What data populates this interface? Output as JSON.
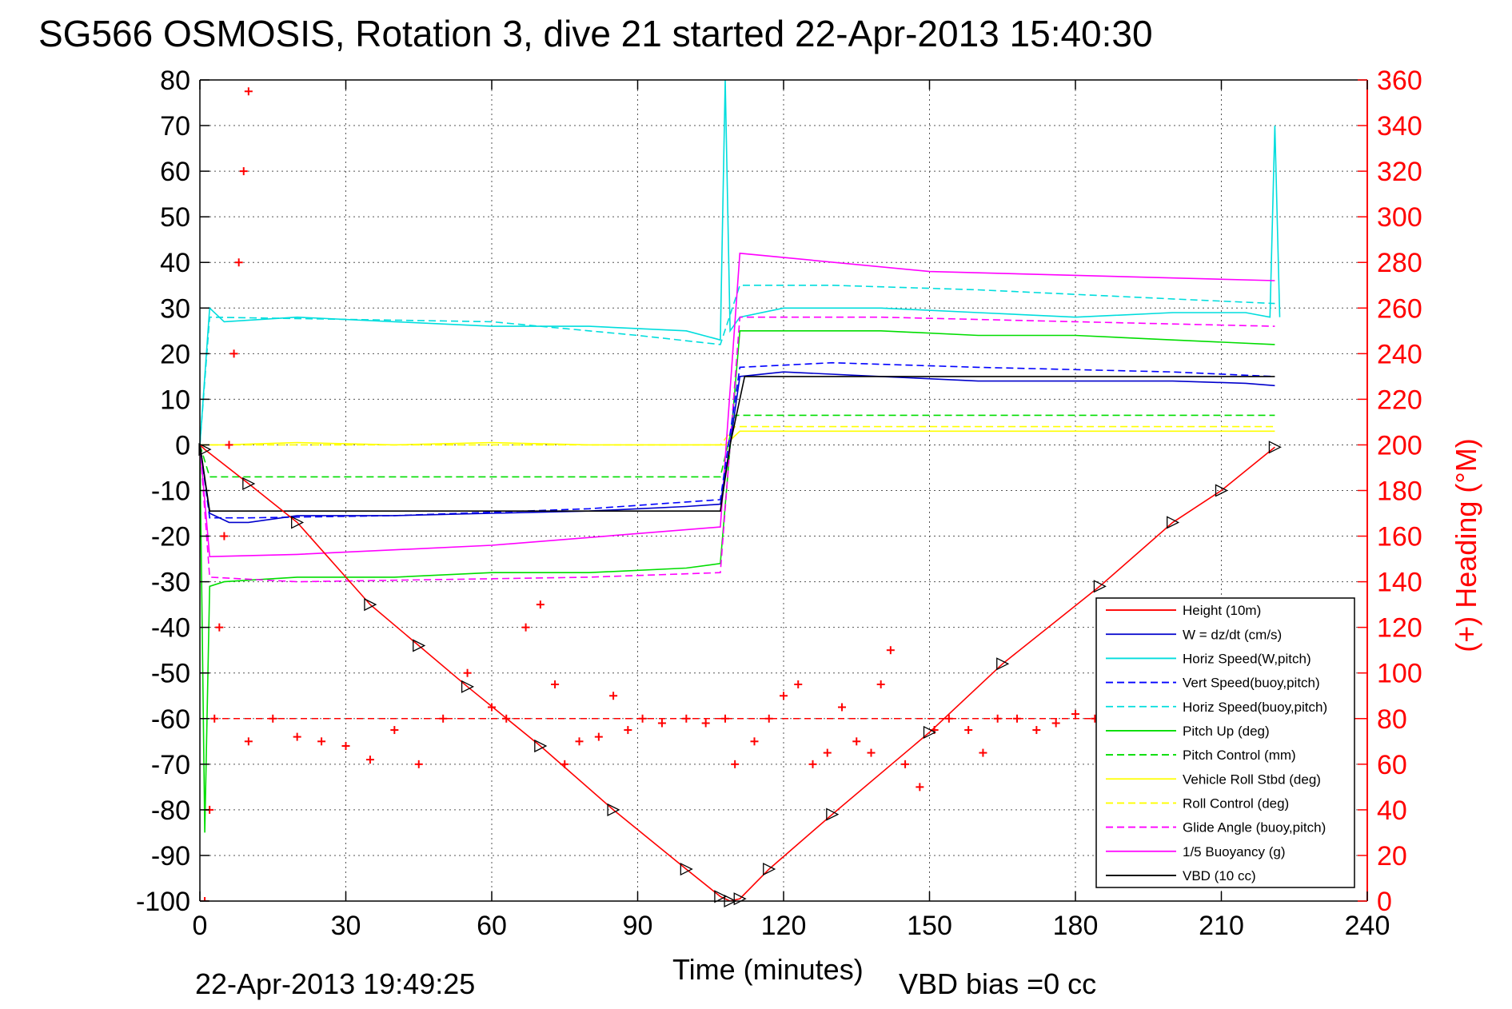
{
  "chart_data": {
    "type": "line",
    "title": "SG566 OSMOSIS, Rotation 3, dive 21 started 22-Apr-2013 15:40:30",
    "xlabel": "Time (minutes)",
    "ylabel_right": "(+) Heading (°M)",
    "footer_left": "22-Apr-2013 19:49:25",
    "footer_right": "VBD bias =0 cc",
    "xlim": [
      0,
      240
    ],
    "ylim": [
      -100,
      80
    ],
    "ylim_right": [
      0,
      360
    ],
    "xticks": [
      "0",
      "30",
      "60",
      "90",
      "120",
      "150",
      "180",
      "210",
      "240"
    ],
    "yticks": [
      "80",
      "70",
      "60",
      "50",
      "40",
      "30",
      "20",
      "10",
      "0",
      "-10",
      "-20",
      "-30",
      "-40",
      "-50",
      "-60",
      "-70",
      "-80",
      "-90",
      "-100"
    ],
    "yticks_right": [
      "360",
      "340",
      "320",
      "300",
      "280",
      "260",
      "240",
      "220",
      "200",
      "180",
      "160",
      "140",
      "120",
      "100",
      "80",
      "60",
      "40",
      "20",
      "0"
    ],
    "grid": true,
    "legend_position": "lower-right",
    "series": [
      {
        "name": "Height (10m)",
        "color": "#ff0000",
        "style": "solid",
        "x": [
          0,
          1,
          10,
          20,
          35,
          45,
          55,
          70,
          85,
          100,
          107,
          109,
          111,
          117,
          130,
          150,
          165,
          185,
          200,
          210,
          221
        ],
        "y": [
          0,
          -1,
          -8.5,
          -17,
          -35,
          -44,
          -53,
          -66,
          -80,
          -93,
          -99,
          -100,
          -99.5,
          -93,
          -81,
          -63,
          -48,
          -31,
          -17,
          -10,
          -0.5
        ]
      },
      {
        "name": "W = dz/dt (cm/s)",
        "color": "#0000cc",
        "style": "solid",
        "x": [
          0,
          2,
          6,
          10,
          20,
          40,
          60,
          80,
          100,
          107,
          109,
          111,
          120,
          140,
          160,
          180,
          200,
          215,
          221
        ],
        "y": [
          0,
          -15,
          -17,
          -17,
          -15.5,
          -15.5,
          -15,
          -14.5,
          -13.5,
          -13,
          0,
          15,
          16,
          15,
          14,
          14,
          14,
          13.5,
          13
        ]
      },
      {
        "name": "Horiz Speed(W,pitch)",
        "color": "#00dddd",
        "style": "solid",
        "x": [
          0,
          2,
          5,
          20,
          40,
          60,
          80,
          100,
          107,
          108,
          109,
          111,
          120,
          140,
          160,
          180,
          200,
          215,
          220,
          221,
          222
        ],
        "y": [
          0,
          30,
          27,
          28,
          27,
          26,
          26,
          25,
          23,
          80,
          25,
          28,
          30,
          30,
          29,
          28,
          29,
          29,
          28,
          70,
          28
        ]
      },
      {
        "name": "Vert Speed(buoy,pitch)",
        "color": "#0000ff",
        "style": "dashed",
        "x": [
          0,
          2,
          10,
          40,
          80,
          107,
          111,
          130,
          160,
          200,
          221
        ],
        "y": [
          0,
          -16,
          -16,
          -15.5,
          -14,
          -12,
          17,
          18,
          17,
          16,
          15
        ]
      },
      {
        "name": "Horiz Speed(buoy,pitch)",
        "color": "#00dddd",
        "style": "dashed",
        "x": [
          0,
          2,
          60,
          90,
          107,
          111,
          130,
          160,
          200,
          221
        ],
        "y": [
          0,
          28,
          27,
          24,
          22,
          35,
          35,
          34,
          32,
          31
        ]
      },
      {
        "name": "Pitch Up (deg)",
        "color": "#00dd00",
        "style": "solid",
        "x": [
          0,
          1,
          2,
          5,
          20,
          40,
          60,
          80,
          100,
          107,
          111,
          120,
          140,
          160,
          180,
          200,
          221
        ],
        "y": [
          0,
          -85,
          -31,
          -30,
          -29,
          -29,
          -28,
          -28,
          -27,
          -26,
          25,
          25,
          25,
          24,
          24,
          23,
          22
        ]
      },
      {
        "name": "Pitch Control (mm)",
        "color": "#00dd00",
        "style": "dashed",
        "x": [
          0,
          2,
          107,
          110,
          221
        ],
        "y": [
          0,
          -7,
          -7,
          6.5,
          6.5
        ]
      },
      {
        "name": "Vehicle Roll Stbd (deg)",
        "color": "#ffff00",
        "style": "solid",
        "x": [
          0,
          5,
          20,
          40,
          60,
          80,
          100,
          108,
          111,
          120,
          140,
          160,
          180,
          200,
          221
        ],
        "y": [
          0,
          0,
          0.5,
          0,
          0.5,
          0,
          0,
          0,
          3,
          3,
          3,
          3,
          3,
          3,
          3
        ]
      },
      {
        "name": "Roll Control (deg)",
        "color": "#ffff00",
        "style": "dashed",
        "x": [
          0,
          2,
          107,
          110,
          221
        ],
        "y": [
          0,
          0,
          0,
          4,
          4
        ]
      },
      {
        "name": "Glide Angle (buoy,pitch)",
        "color": "#ff00ff",
        "style": "dashed",
        "x": [
          0,
          2,
          20,
          50,
          80,
          107,
          111,
          140,
          180,
          221
        ],
        "y": [
          0,
          -29,
          -30,
          -29.5,
          -29,
          -28,
          28,
          28,
          27,
          26
        ]
      },
      {
        "name": "1/5 Buoyancy (g)",
        "color": "#ff00ff",
        "style": "solid",
        "x": [
          0,
          2,
          20,
          60,
          107,
          111,
          150,
          221
        ],
        "y": [
          0,
          -24.5,
          -24,
          -22,
          -18,
          42,
          38,
          36
        ]
      },
      {
        "name": "VBD (10 cc)",
        "color": "#000000",
        "style": "solid",
        "x": [
          0,
          2,
          107,
          109,
          112,
          221
        ],
        "y": [
          0,
          -14.5,
          -14.5,
          0,
          15,
          15
        ]
      }
    ],
    "heading": {
      "color": "#ff0000",
      "marker": "+",
      "axis": "right",
      "points": [
        [
          1,
          0
        ],
        [
          2,
          40
        ],
        [
          3,
          80
        ],
        [
          4,
          120
        ],
        [
          5,
          160
        ],
        [
          6,
          200
        ],
        [
          7,
          240
        ],
        [
          8,
          280
        ],
        [
          9,
          320
        ],
        [
          10,
          355
        ],
        [
          10,
          70
        ],
        [
          15,
          80
        ],
        [
          20,
          72
        ],
        [
          25,
          70
        ],
        [
          30,
          68
        ],
        [
          35,
          62
        ],
        [
          40,
          75
        ],
        [
          45,
          60
        ],
        [
          50,
          80
        ],
        [
          55,
          100
        ],
        [
          60,
          85
        ],
        [
          63,
          80
        ],
        [
          67,
          120
        ],
        [
          70,
          130
        ],
        [
          73,
          95
        ],
        [
          75,
          60
        ],
        [
          78,
          70
        ],
        [
          82,
          72
        ],
        [
          85,
          90
        ],
        [
          88,
          75
        ],
        [
          91,
          80
        ],
        [
          95,
          78
        ],
        [
          100,
          80
        ],
        [
          104,
          78
        ],
        [
          108,
          80
        ],
        [
          110,
          60
        ],
        [
          114,
          70
        ],
        [
          117,
          80
        ],
        [
          120,
          90
        ],
        [
          123,
          95
        ],
        [
          126,
          60
        ],
        [
          129,
          65
        ],
        [
          132,
          85
        ],
        [
          135,
          70
        ],
        [
          138,
          65
        ],
        [
          140,
          95
        ],
        [
          142,
          110
        ],
        [
          145,
          60
        ],
        [
          148,
          50
        ],
        [
          151,
          75
        ],
        [
          154,
          80
        ],
        [
          158,
          75
        ],
        [
          161,
          65
        ],
        [
          164,
          80
        ],
        [
          168,
          80
        ],
        [
          172,
          75
        ],
        [
          176,
          78
        ],
        [
          180,
          82
        ],
        [
          184,
          80
        ]
      ],
      "reference": 80
    }
  }
}
